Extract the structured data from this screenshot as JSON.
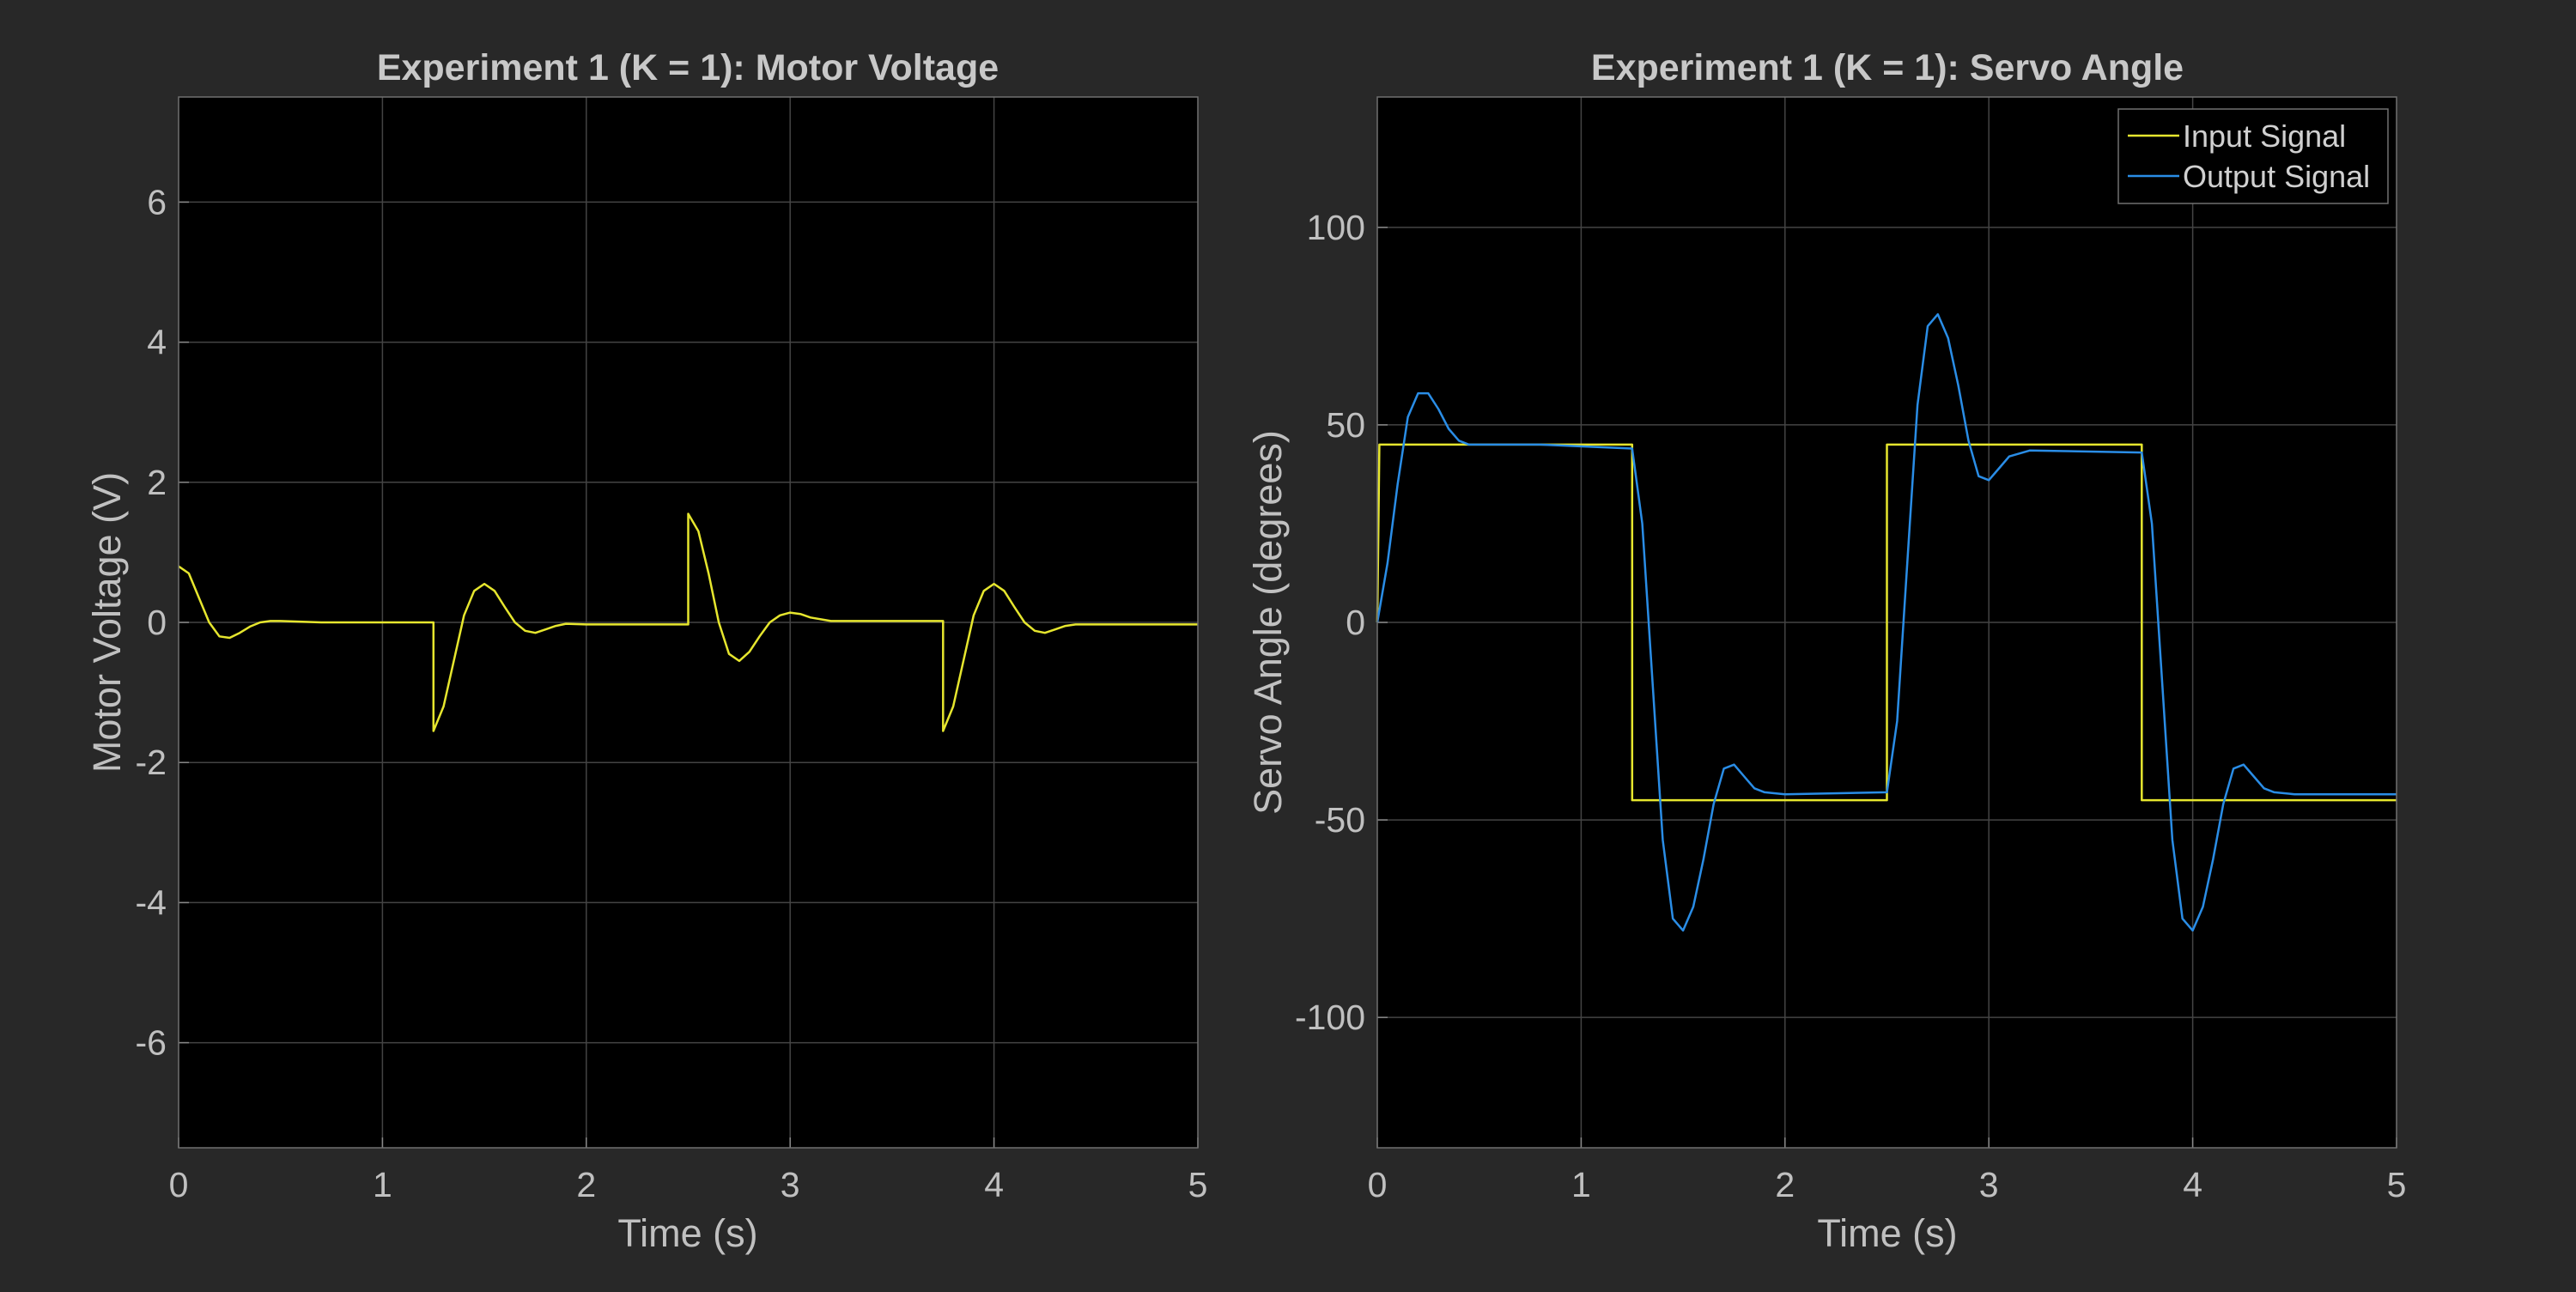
{
  "colors": {
    "figure_background": "#282828",
    "axes_background": "#000000",
    "grid": "#444444",
    "axis_text": "#c0c0c0",
    "input_signal": "#e6e62e",
    "output_signal": "#2a8de6"
  },
  "chart_data": [
    {
      "type": "line",
      "title": "Experiment 1 (K = 1): Motor Voltage",
      "xlabel": "Time (s)",
      "ylabel": "Motor Voltage (V)",
      "xlim": [
        0,
        5
      ],
      "ylim": [
        -7.5,
        7.5
      ],
      "xticks": [
        0,
        1,
        2,
        3,
        4,
        5
      ],
      "xtick_labels": [
        "0",
        "1",
        "2",
        "3",
        "4",
        "5"
      ],
      "yticks": [
        -6,
        -4,
        -2,
        0,
        2,
        4,
        6
      ],
      "ytick_labels": [
        "-6",
        "-4",
        "-2",
        "0",
        "2",
        "4",
        "6"
      ],
      "grid": true,
      "legend": null,
      "series": [
        {
          "color": "#e6e62e",
          "x": [
            0,
            0.05,
            0.1,
            0.15,
            0.2,
            0.25,
            0.3,
            0.35,
            0.4,
            0.45,
            0.5,
            0.7,
            1.0,
            1.25,
            1.25,
            1.3,
            1.35,
            1.4,
            1.45,
            1.5,
            1.55,
            1.6,
            1.65,
            1.7,
            1.75,
            1.8,
            1.85,
            1.9,
            2.0,
            2.2,
            2.5,
            2.5,
            2.55,
            2.6,
            2.65,
            2.7,
            2.75,
            2.8,
            2.85,
            2.9,
            2.95,
            3.0,
            3.05,
            3.1,
            3.2,
            3.3,
            3.5,
            3.75,
            3.75,
            3.8,
            3.85,
            3.9,
            3.95,
            4.0,
            4.05,
            4.1,
            4.15,
            4.2,
            4.25,
            4.3,
            4.35,
            4.4,
            4.5,
            4.7,
            5.0
          ],
          "y": [
            0.8,
            0.7,
            0.35,
            0.0,
            -0.2,
            -0.22,
            -0.15,
            -0.06,
            0.0,
            0.02,
            0.02,
            0.0,
            0.0,
            0.0,
            -1.55,
            -1.2,
            -0.55,
            0.1,
            0.45,
            0.55,
            0.45,
            0.22,
            0.0,
            -0.12,
            -0.15,
            -0.1,
            -0.05,
            -0.02,
            -0.03,
            -0.03,
            -0.03,
            1.55,
            1.3,
            0.7,
            0.0,
            -0.45,
            -0.55,
            -0.42,
            -0.2,
            0.0,
            0.1,
            0.14,
            0.12,
            0.07,
            0.02,
            0.02,
            0.02,
            0.02,
            -1.55,
            -1.2,
            -0.55,
            0.1,
            0.45,
            0.55,
            0.45,
            0.22,
            0.0,
            -0.12,
            -0.15,
            -0.1,
            -0.05,
            -0.03,
            -0.03,
            -0.03,
            -0.03
          ]
        }
      ]
    },
    {
      "type": "line",
      "title": "Experiment 1 (K = 1): Servo Angle",
      "xlabel": "Time (s)",
      "ylabel": "Servo Angle (degrees)",
      "xlim": [
        0,
        5
      ],
      "ylim": [
        -133,
        133
      ],
      "xticks": [
        0,
        1,
        2,
        3,
        4,
        5
      ],
      "xtick_labels": [
        "0",
        "1",
        "2",
        "3",
        "4",
        "5"
      ],
      "yticks": [
        -100,
        -50,
        0,
        50,
        100
      ],
      "ytick_labels": [
        "-100",
        "-50",
        "0",
        "50",
        "100"
      ],
      "grid": true,
      "legend": "top-right",
      "series": [
        {
          "name": "Input Signal",
          "color": "#e6e62e",
          "x": [
            0,
            0.01,
            1.25,
            1.25,
            2.5,
            2.5,
            3.75,
            3.75,
            5.0
          ],
          "y": [
            0,
            45,
            45,
            -45,
            -45,
            45,
            45,
            -45,
            -45
          ]
        },
        {
          "name": "Output Signal",
          "color": "#2a8de6",
          "x": [
            0,
            0.05,
            0.1,
            0.15,
            0.2,
            0.25,
            0.3,
            0.35,
            0.4,
            0.45,
            0.5,
            0.8,
            1.25,
            1.3,
            1.35,
            1.4,
            1.45,
            1.5,
            1.55,
            1.6,
            1.65,
            1.7,
            1.75,
            1.8,
            1.85,
            1.9,
            2.0,
            2.5,
            2.55,
            2.6,
            2.65,
            2.7,
            2.75,
            2.8,
            2.85,
            2.9,
            2.95,
            3.0,
            3.05,
            3.1,
            3.2,
            3.75,
            3.8,
            3.85,
            3.9,
            3.95,
            4.0,
            4.05,
            4.1,
            4.15,
            4.2,
            4.25,
            4.3,
            4.35,
            4.4,
            4.5,
            5.0
          ],
          "y": [
            0,
            15,
            35,
            52,
            58,
            58,
            54,
            49,
            46,
            45,
            45,
            45,
            44,
            25,
            -15,
            -55,
            -75,
            -78,
            -72,
            -60,
            -46,
            -37,
            -36,
            -39,
            -42,
            -43,
            -43.5,
            -43,
            -25,
            15,
            55,
            75,
            78,
            72,
            60,
            46,
            37,
            36,
            39,
            42,
            43.5,
            43,
            25,
            -15,
            -55,
            -75,
            -78,
            -72,
            -60,
            -46,
            -37,
            -36,
            -39,
            -42,
            -43,
            -43.5,
            -43.5
          ]
        }
      ]
    }
  ]
}
